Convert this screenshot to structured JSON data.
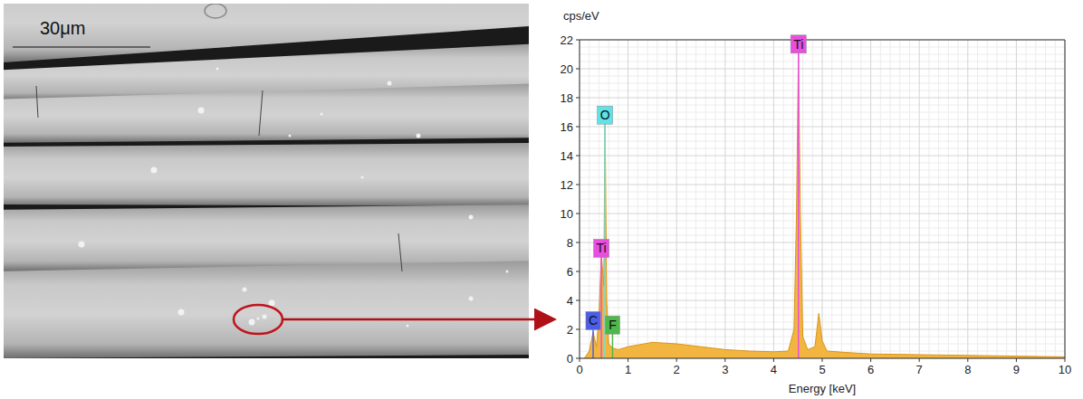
{
  "image": {
    "scale_bar": "30μm"
  },
  "chart_data": {
    "type": "area",
    "y_label": "cps/eV",
    "x_label": "Energy [keV]",
    "color": "#f2b640",
    "grid": true,
    "xlim": [
      0,
      10
    ],
    "xticks": [
      0,
      1,
      2,
      3,
      4,
      5,
      6,
      7,
      8,
      9,
      10
    ],
    "ylim": [
      0,
      22
    ],
    "yticks": [
      0,
      2,
      4,
      6,
      8,
      10,
      12,
      14,
      16,
      18,
      20,
      22
    ],
    "x": [
      0.1,
      0.2,
      0.28,
      0.35,
      0.4,
      0.45,
      0.5,
      0.525,
      0.56,
      0.6,
      0.68,
      0.8,
      1.0,
      1.5,
      2.0,
      2.5,
      3.0,
      3.5,
      4.0,
      4.3,
      4.42,
      4.47,
      4.51,
      4.55,
      4.6,
      4.7,
      4.85,
      4.93,
      5.0,
      5.1,
      5.5,
      6.0,
      7.0,
      8.0,
      9.0,
      10.0
    ],
    "values": [
      0,
      0.5,
      1.8,
      0.8,
      3,
      7.2,
      5,
      17,
      4,
      1.0,
      0.7,
      0.6,
      0.8,
      1.1,
      1.0,
      0.8,
      0.6,
      0.5,
      0.45,
      0.5,
      2,
      10,
      21,
      10,
      1.5,
      0.6,
      0.8,
      3.1,
      1.2,
      0.5,
      0.4,
      0.3,
      0.25,
      0.2,
      0.15,
      0.1
    ],
    "annotations": [
      {
        "text": "Ti",
        "x": 4.51,
        "y": 21.7,
        "color": "#e84fe0"
      },
      {
        "text": "O",
        "x": 0.525,
        "y": 16.8,
        "color": "#5fe3e8"
      },
      {
        "text": "Ti",
        "x": 0.45,
        "y": 7.6,
        "color": "#e84fe0"
      },
      {
        "text": "C",
        "x": 0.28,
        "y": 2.6,
        "color": "#4b5ee8"
      },
      {
        "text": "F",
        "x": 0.68,
        "y": 2.3,
        "color": "#4fb84a"
      }
    ]
  }
}
